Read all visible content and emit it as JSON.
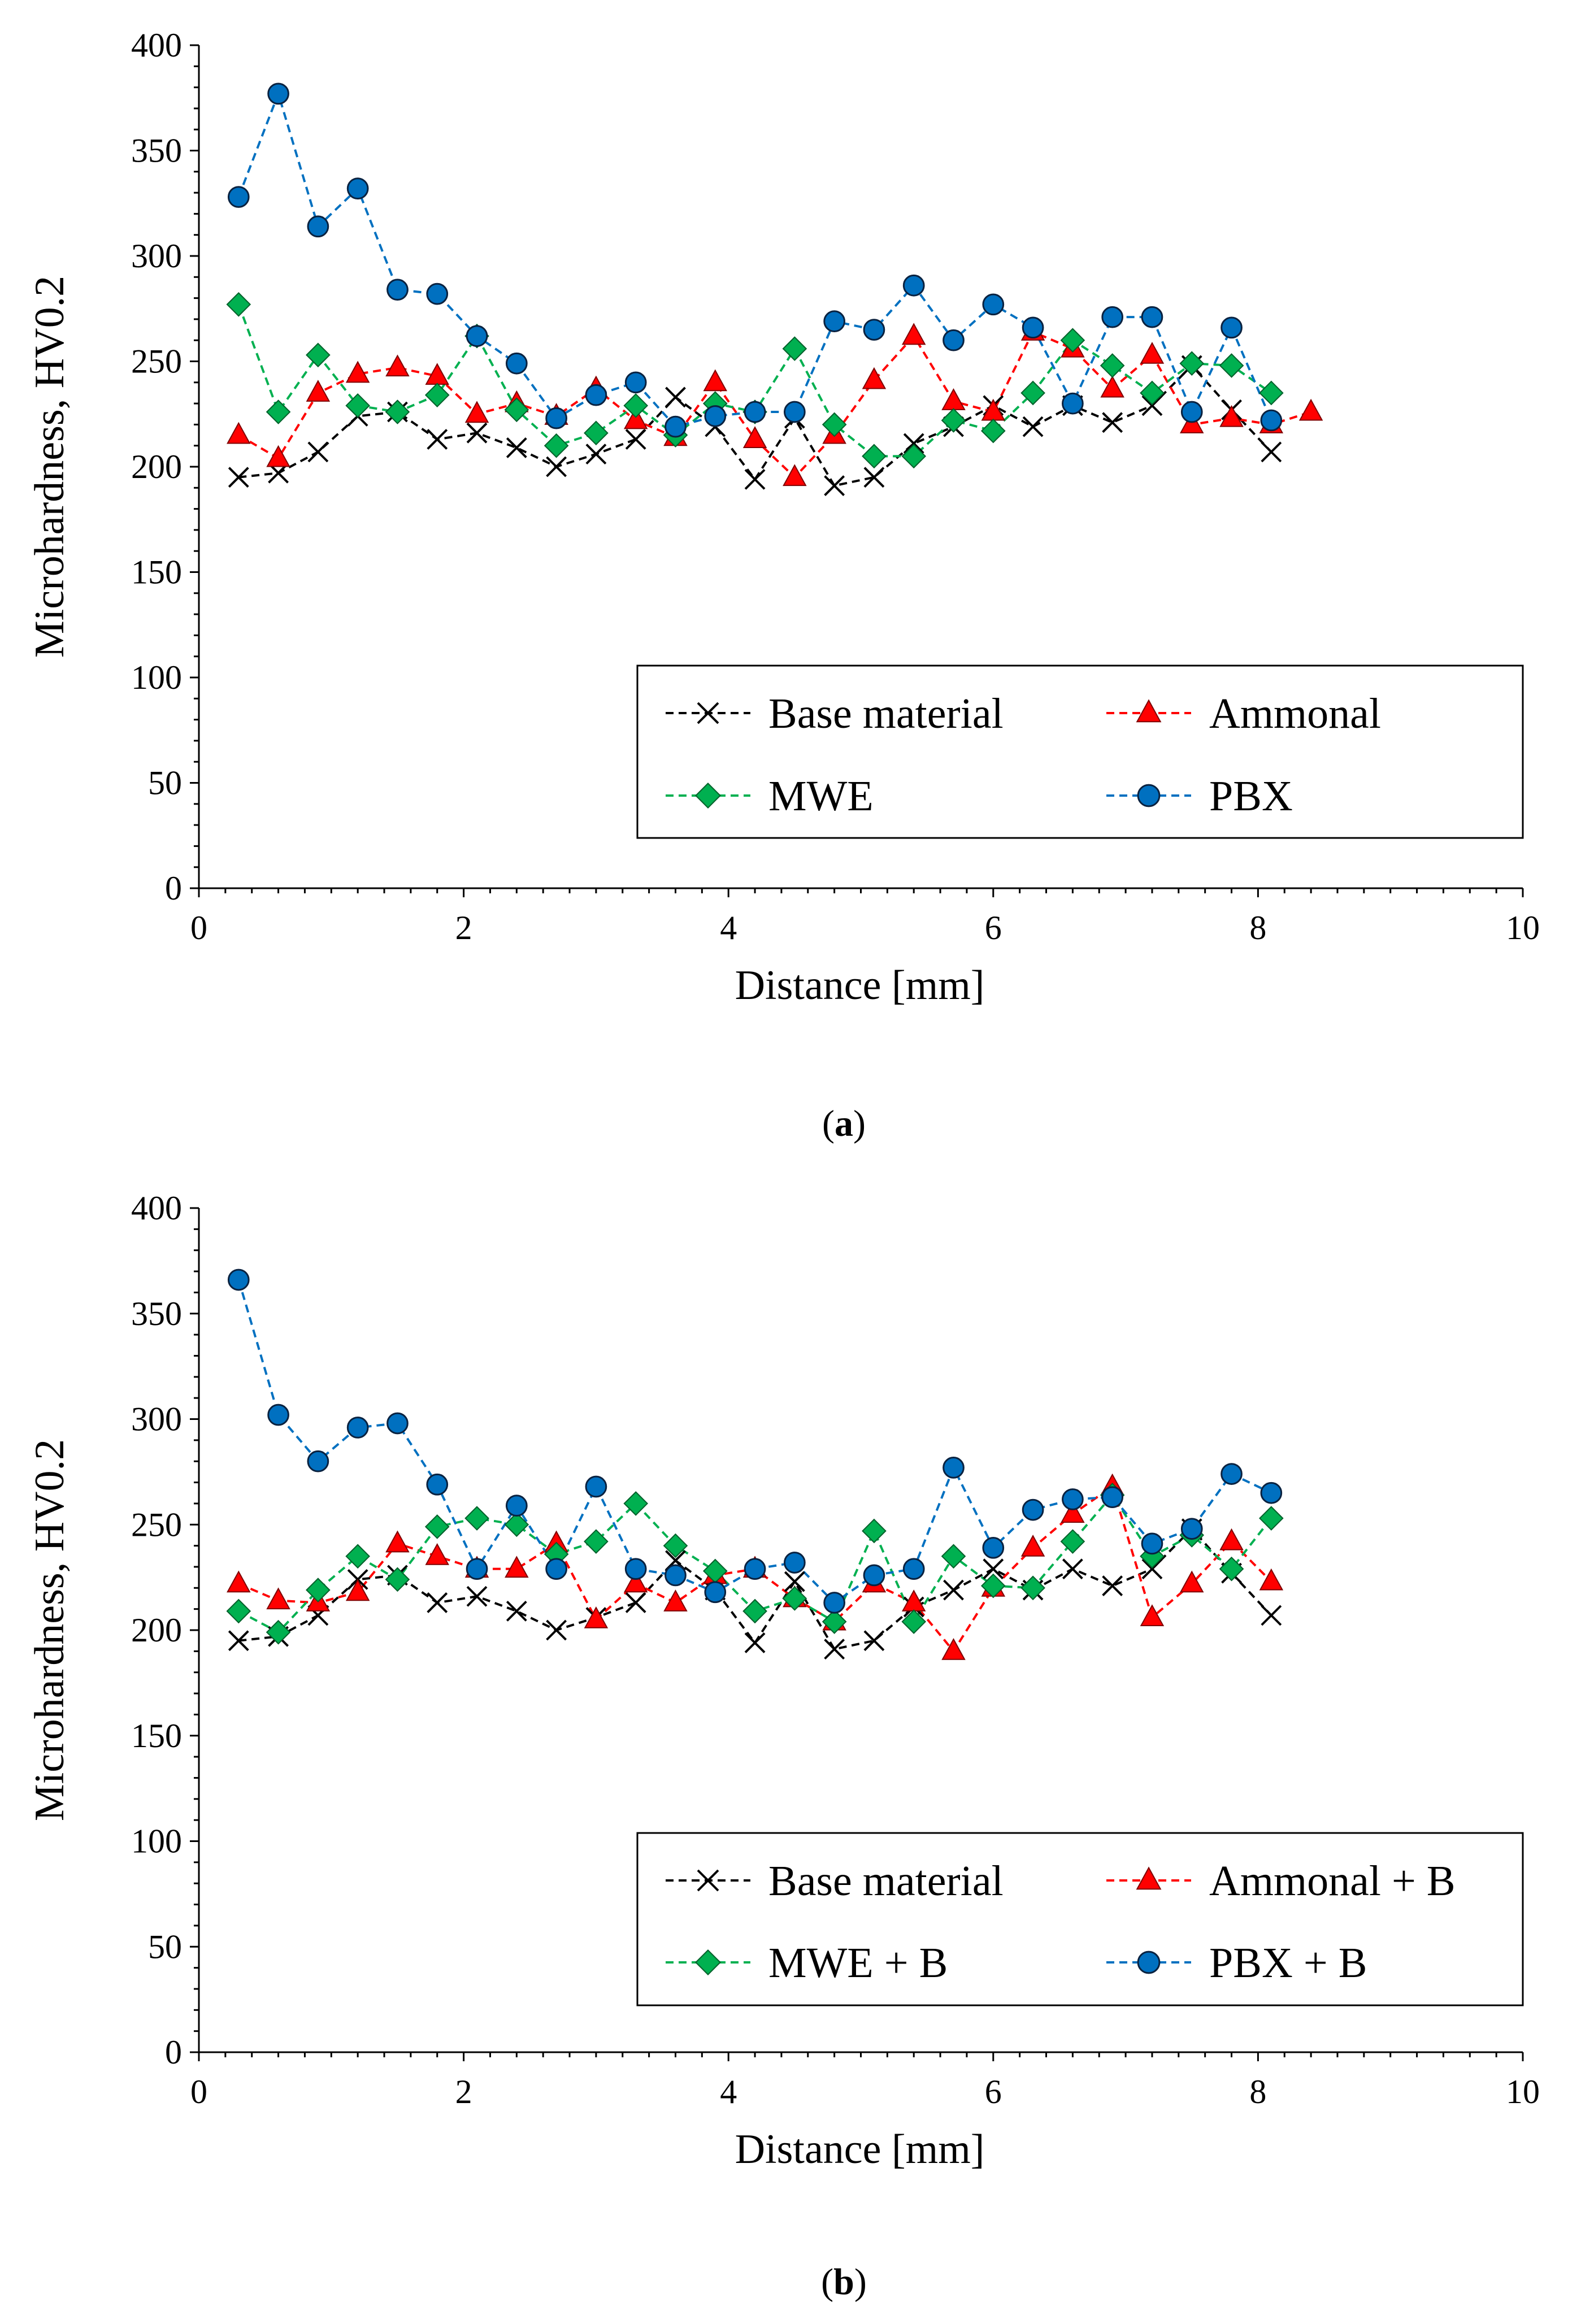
{
  "charts": [
    {
      "caption_letter": "a",
      "legend_title": "",
      "series": []
    },
    {
      "caption_letter": "b"
    }
  ],
  "chart_data": [
    {
      "type": "line",
      "panel": "a",
      "xlabel": "Distance [mm]",
      "ylabel": "Microhardness,  HV0.2",
      "xlim": [
        0,
        10
      ],
      "ylim": [
        0,
        400
      ],
      "xticks": [
        0,
        2,
        4,
        6,
        8,
        10
      ],
      "yticks": [
        0,
        50,
        100,
        150,
        200,
        250,
        300,
        350,
        400
      ],
      "legend_position": "bottom-right",
      "series": [
        {
          "name": "Base material",
          "color": "#000000",
          "marker": "x",
          "x": [
            0.3,
            0.6,
            0.9,
            1.2,
            1.5,
            1.8,
            2.1,
            2.4,
            2.7,
            3.0,
            3.3,
            3.6,
            3.9,
            4.2,
            4.5,
            4.8,
            5.1,
            5.4,
            5.7,
            6.0,
            6.3,
            6.6,
            6.9,
            7.2,
            7.5,
            7.8,
            8.1
          ],
          "y": [
            195,
            197,
            207,
            224,
            226,
            213,
            216,
            209,
            200,
            206,
            213,
            233,
            219,
            194,
            223,
            191,
            195,
            211,
            219,
            229,
            219,
            229,
            221,
            229,
            248,
            227,
            207
          ]
        },
        {
          "name": "Ammonal",
          "color": "#ff0000",
          "marker": "triangle",
          "x": [
            0.3,
            0.6,
            0.9,
            1.2,
            1.5,
            1.8,
            2.1,
            2.4,
            2.7,
            3.0,
            3.3,
            3.6,
            3.9,
            4.2,
            4.5,
            4.8,
            5.1,
            5.4,
            5.7,
            6.0,
            6.3,
            6.6,
            6.9,
            7.2,
            7.5,
            7.8,
            8.1,
            8.4
          ],
          "y": [
            215,
            204,
            235,
            244,
            247,
            243,
            225,
            230,
            224,
            237,
            222,
            214,
            240,
            213,
            195,
            215,
            241,
            262,
            231,
            226,
            264,
            256,
            237,
            253,
            220,
            223,
            220,
            226
          ]
        },
        {
          "name": "MWE",
          "color": "#00b050",
          "marker": "diamond",
          "x": [
            0.3,
            0.6,
            0.9,
            1.2,
            1.5,
            1.8,
            2.1,
            2.4,
            2.7,
            3.0,
            3.3,
            3.6,
            3.9,
            4.2,
            4.5,
            4.8,
            5.1,
            5.4,
            5.7,
            6.0,
            6.3,
            6.6,
            6.9,
            7.2,
            7.5,
            7.8,
            8.1
          ],
          "y": [
            277,
            226,
            253,
            229,
            226,
            234,
            262,
            227,
            210,
            216,
            229,
            215,
            230,
            226,
            256,
            220,
            205,
            205,
            222,
            217,
            235,
            260,
            248,
            235,
            249,
            248,
            235
          ]
        },
        {
          "name": "PBX",
          "color": "#0070c0",
          "marker": "circle",
          "x": [
            0.3,
            0.6,
            0.9,
            1.2,
            1.5,
            1.8,
            2.1,
            2.4,
            2.7,
            3.0,
            3.3,
            3.6,
            3.9,
            4.2,
            4.5,
            4.8,
            5.1,
            5.4,
            5.7,
            6.0,
            6.3,
            6.6,
            6.9,
            7.2,
            7.5,
            7.8,
            8.1
          ],
          "y": [
            328,
            377,
            314,
            332,
            284,
            282,
            262,
            249,
            223,
            234,
            240,
            219,
            224,
            226,
            226,
            269,
            265,
            286,
            260,
            277,
            266,
            230,
            271,
            271,
            226,
            266,
            222
          ]
        }
      ]
    },
    {
      "type": "line",
      "panel": "b",
      "xlabel": "Distance [mm]",
      "ylabel": "Microhardness,  HV0.2",
      "xlim": [
        0,
        10
      ],
      "ylim": [
        0,
        400
      ],
      "xticks": [
        0,
        2,
        4,
        6,
        8,
        10
      ],
      "yticks": [
        0,
        50,
        100,
        150,
        200,
        250,
        300,
        350,
        400
      ],
      "legend_position": "bottom-right",
      "series": [
        {
          "name": "Base material",
          "color": "#000000",
          "marker": "x",
          "x": [
            0.3,
            0.6,
            0.9,
            1.2,
            1.5,
            1.8,
            2.1,
            2.4,
            2.7,
            3.0,
            3.3,
            3.6,
            3.9,
            4.2,
            4.5,
            4.8,
            5.1,
            5.4,
            5.7,
            6.0,
            6.3,
            6.6,
            6.9,
            7.2,
            7.5,
            7.8,
            8.1
          ],
          "y": [
            195,
            197,
            207,
            224,
            226,
            213,
            216,
            209,
            200,
            206,
            213,
            233,
            219,
            194,
            223,
            191,
            195,
            211,
            219,
            229,
            219,
            229,
            221,
            229,
            248,
            227,
            207
          ]
        },
        {
          "name": "Ammonal + B",
          "color": "#ff0000",
          "marker": "triangle",
          "x": [
            0.3,
            0.6,
            0.9,
            1.2,
            1.5,
            1.8,
            2.1,
            2.4,
            2.7,
            3.0,
            3.3,
            3.6,
            3.9,
            4.2,
            4.5,
            4.8,
            5.1,
            5.4,
            5.7,
            6.0,
            6.3,
            6.6,
            6.9,
            7.2,
            7.5,
            7.8,
            8.1
          ],
          "y": [
            222,
            214,
            213,
            218,
            241,
            235,
            229,
            229,
            241,
            205,
            222,
            213,
            226,
            229,
            215,
            204,
            222,
            213,
            190,
            220,
            239,
            255,
            268,
            206,
            222,
            242,
            223
          ]
        },
        {
          "name": "MWE + B",
          "color": "#00b050",
          "marker": "diamond",
          "x": [
            0.3,
            0.6,
            0.9,
            1.2,
            1.5,
            1.8,
            2.1,
            2.4,
            2.7,
            3.0,
            3.3,
            3.6,
            3.9,
            4.2,
            4.5,
            4.8,
            5.1,
            5.4,
            5.7,
            6.0,
            6.3,
            6.6,
            6.9,
            7.2,
            7.5,
            7.8,
            8.1
          ],
          "y": [
            209,
            199,
            219,
            235,
            224,
            249,
            253,
            250,
            236,
            242,
            260,
            240,
            228,
            209,
            215,
            204,
            247,
            204,
            235,
            221,
            220,
            242,
            264,
            235,
            245,
            229,
            253
          ]
        },
        {
          "name": "PBX + B",
          "color": "#0070c0",
          "marker": "circle",
          "x": [
            0.3,
            0.6,
            0.9,
            1.2,
            1.5,
            1.8,
            2.1,
            2.4,
            2.7,
            3.0,
            3.3,
            3.6,
            3.9,
            4.2,
            4.5,
            4.8,
            5.1,
            5.4,
            5.7,
            6.0,
            6.3,
            6.6,
            6.9,
            7.2,
            7.5,
            7.8,
            8.1
          ],
          "y": [
            366,
            302,
            280,
            296,
            298,
            269,
            229,
            259,
            229,
            268,
            229,
            226,
            218,
            229,
            232,
            213,
            226,
            229,
            277,
            239,
            257,
            262,
            263,
            241,
            248,
            274,
            265
          ]
        }
      ]
    }
  ]
}
